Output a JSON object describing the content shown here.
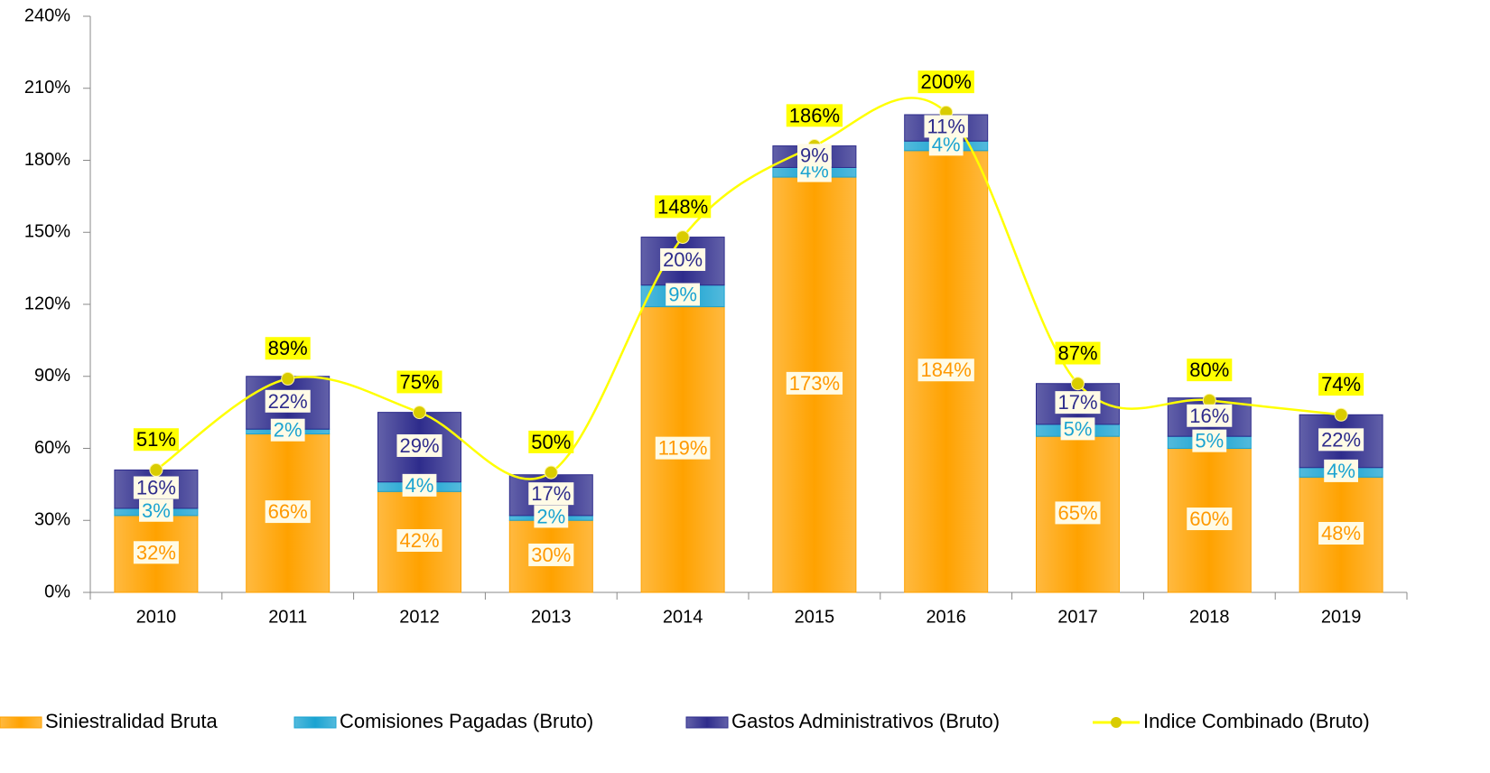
{
  "chart_data": {
    "type": "bar",
    "stacked": true,
    "categories": [
      "2010",
      "2011",
      "2012",
      "2013",
      "2014",
      "2015",
      "2016",
      "2017",
      "2018",
      "2019"
    ],
    "series": [
      {
        "name": "Siniestralidad Bruta",
        "color": "#ffa200",
        "label_color": "#ff9900",
        "values": [
          32,
          66,
          42,
          30,
          119,
          173,
          184,
          65,
          60,
          48
        ],
        "value_labels": [
          "32%",
          "66%",
          "42%",
          "30%",
          "119%",
          "173%",
          "184%",
          "65%",
          "60%",
          "48%"
        ]
      },
      {
        "name": "Comisiones Pagadas (Bruto)",
        "color": "#1aa3d1",
        "label_color": "#1aa3d1",
        "values": [
          3,
          2,
          4,
          2,
          9,
          4,
          4,
          5,
          5,
          4
        ],
        "value_labels": [
          "3%",
          "2%",
          "4%",
          "2%",
          "9%",
          "4%",
          "4%",
          "5%",
          "5%",
          "4%"
        ]
      },
      {
        "name": "Gastos Administrativos (Bruto)",
        "color": "#2e2c8c",
        "label_color": "#2e2c8c",
        "values": [
          16,
          22,
          29,
          17,
          20,
          9,
          11,
          17,
          16,
          22
        ],
        "value_labels": [
          "16%",
          "22%",
          "29%",
          "17%",
          "20%",
          "9%",
          "11%",
          "17%",
          "16%",
          "22%"
        ]
      },
      {
        "name": "Indice Combinado (Bruto)",
        "type": "line",
        "color": "#ffff00",
        "marker_color": "#d9cc00",
        "label_color": "#000000",
        "values": [
          51,
          89,
          75,
          50,
          148,
          186,
          200,
          87,
          80,
          74
        ],
        "value_labels": [
          "51%",
          "89%",
          "75%",
          "50%",
          "148%",
          "186%",
          "200%",
          "87%",
          "80%",
          "74%"
        ]
      }
    ],
    "ylim": [
      0,
      240
    ],
    "yticks": [
      {
        "value": 0,
        "label": "0%"
      },
      {
        "value": 30,
        "label": "30%"
      },
      {
        "value": 60,
        "label": "60%"
      },
      {
        "value": 90,
        "label": "90%"
      },
      {
        "value": 120,
        "label": "120%"
      },
      {
        "value": 150,
        "label": "150%"
      },
      {
        "value": 180,
        "label": "180%"
      },
      {
        "value": 210,
        "label": "210%"
      },
      {
        "value": 240,
        "label": "240%"
      }
    ],
    "legend": "bottom"
  }
}
